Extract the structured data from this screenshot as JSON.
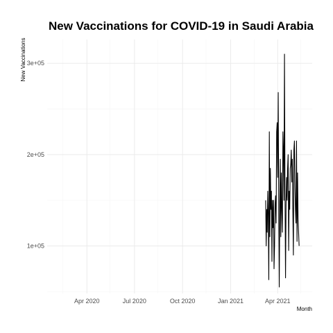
{
  "chart_data": {
    "type": "line",
    "title": "New Vaccinations for COVID-19 in Saudi Arabia",
    "xlabel": "Month",
    "ylabel": "New Vaccinations",
    "x_range": [
      "2020-01-16",
      "2021-06-06"
    ],
    "ylim": [
      48000,
      326000
    ],
    "x_ticks": [
      {
        "date": "2020-04-01",
        "label": "Apr 2020"
      },
      {
        "date": "2020-07-01",
        "label": "Jul 2020"
      },
      {
        "date": "2020-10-01",
        "label": "Oct 2020"
      },
      {
        "date": "2021-01-01",
        "label": "Jan 2021"
      },
      {
        "date": "2021-04-01",
        "label": "Apr 2021"
      }
    ],
    "x_minor_ticks": [
      "2020-02-15",
      "2020-05-15",
      "2020-08-15",
      "2020-11-15",
      "2021-02-15",
      "2021-05-15"
    ],
    "y_ticks": [
      {
        "value": 100000,
        "label": "1e+05"
      },
      {
        "value": 200000,
        "label": "2e+05"
      },
      {
        "value": 300000,
        "label": "3e+05"
      }
    ],
    "y_minor_ticks": [
      50000,
      150000,
      250000
    ],
    "grid": true,
    "line_color": "#000000",
    "series": [
      {
        "x": [
          "2021-03-09",
          "2021-03-10",
          "2021-03-11",
          "2021-03-12",
          "2021-03-13",
          "2021-03-14",
          "2021-03-15",
          "2021-03-16",
          "2021-03-17",
          "2021-03-18",
          "2021-03-19",
          "2021-03-20",
          "2021-03-21",
          "2021-03-22",
          "2021-03-23",
          "2021-03-24",
          "2021-03-25",
          "2021-03-26",
          "2021-03-27",
          "2021-03-28",
          "2021-03-29",
          "2021-03-30",
          "2021-03-31",
          "2021-04-01",
          "2021-04-02",
          "2021-04-03",
          "2021-04-04",
          "2021-04-05",
          "2021-04-06",
          "2021-04-07",
          "2021-04-08",
          "2021-04-09",
          "2021-04-10",
          "2021-04-11",
          "2021-04-12",
          "2021-04-13",
          "2021-04-14",
          "2021-04-15",
          "2021-04-16",
          "2021-04-17",
          "2021-04-18",
          "2021-04-19",
          "2021-04-20",
          "2021-04-21",
          "2021-04-22",
          "2021-04-23",
          "2021-04-24",
          "2021-04-25",
          "2021-04-26",
          "2021-04-27",
          "2021-04-28",
          "2021-04-29",
          "2021-04-30",
          "2021-05-01",
          "2021-05-02",
          "2021-05-03",
          "2021-05-04",
          "2021-05-05",
          "2021-05-06",
          "2021-05-07",
          "2021-05-08",
          "2021-05-09",
          "2021-05-10",
          "2021-05-11",
          "2021-05-12"
        ],
        "y": [
          150000,
          100000,
          140000,
          115000,
          160000,
          135000,
          63000,
          225000,
          110000,
          185000,
          140000,
          160000,
          83000,
          150000,
          120000,
          150000,
          75000,
          100000,
          145000,
          155000,
          125000,
          225000,
          235000,
          175000,
          268000,
          145000,
          55000,
          140000,
          195000,
          110000,
          180000,
          140000,
          115000,
          225000,
          205000,
          150000,
          310000,
          160000,
          65000,
          145000,
          175000,
          150000,
          185000,
          200000,
          95000,
          160000,
          140000,
          185000,
          190000,
          205000,
          170000,
          195000,
          140000,
          90000,
          205000,
          215000,
          165000,
          140000,
          125000,
          215000,
          105000,
          180000,
          130000,
          115000,
          100000
        ]
      }
    ]
  }
}
